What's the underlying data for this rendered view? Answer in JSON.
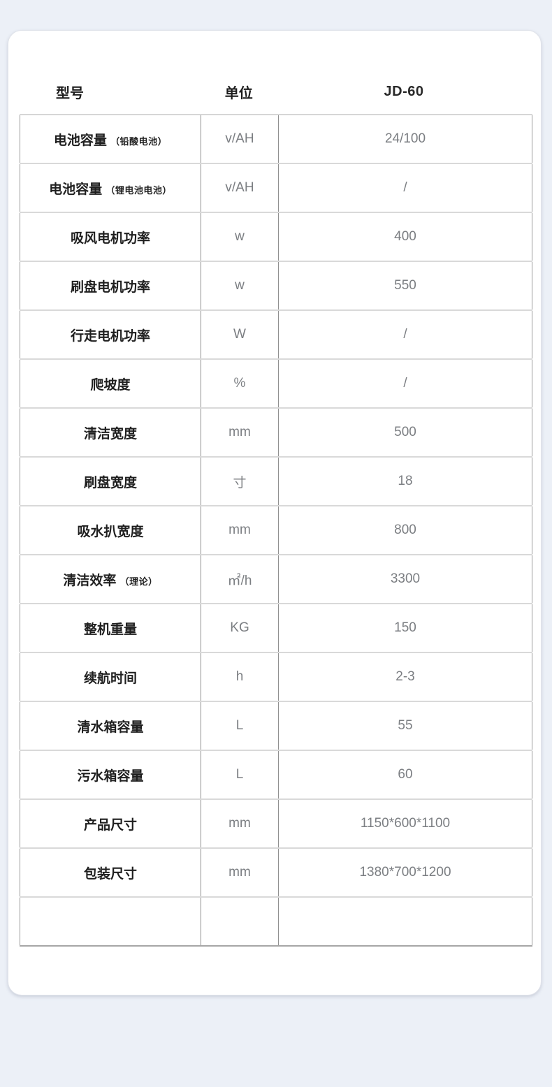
{
  "colors": {
    "page_background": "#ecf0f7",
    "card_background": "#ffffff",
    "label_text": "#1f1f1f",
    "muted_text": "#7b7e82",
    "vertical_border": "#8f8f8f",
    "horizontal_border": "#d9d9d9",
    "outer_bottom_border": "#a6a6a6"
  },
  "table": {
    "header": {
      "model_label": "型号",
      "unit_label": "单位",
      "model_value": "JD-60"
    },
    "rows": [
      {
        "label": "电池容量",
        "label_note": "（铅酸电池）",
        "unit": "v/AH",
        "value": "24/100"
      },
      {
        "label": "电池容量",
        "label_note": "（锂电池电池）",
        "unit": "v/AH",
        "value": "/"
      },
      {
        "label": "吸风电机功率",
        "label_note": "",
        "unit": "w",
        "value": "400"
      },
      {
        "label": "刷盘电机功率",
        "label_note": "",
        "unit": "w",
        "value": "550"
      },
      {
        "label": "行走电机功率",
        "label_note": "",
        "unit": "W",
        "value": "/"
      },
      {
        "label": "爬坡度",
        "label_note": "",
        "unit": "%",
        "value": "/"
      },
      {
        "label": "清洁宽度",
        "label_note": "",
        "unit": "mm",
        "value": "500"
      },
      {
        "label": "刷盘宽度",
        "label_note": "",
        "unit": "寸",
        "value": "18"
      },
      {
        "label": "吸水扒宽度",
        "label_note": "",
        "unit": "mm",
        "value": "800"
      },
      {
        "label": "清洁效率",
        "label_note": "（理论）",
        "unit": "㎡/h",
        "value": "3300"
      },
      {
        "label": "整机重量",
        "label_note": "",
        "unit": "KG",
        "value": "150"
      },
      {
        "label": "续航时间",
        "label_note": "",
        "unit": "h",
        "value": "2-3"
      },
      {
        "label": "清水箱容量",
        "label_note": "",
        "unit": "L",
        "value": "55"
      },
      {
        "label": "污水箱容量",
        "label_note": "",
        "unit": "L",
        "value": "60"
      },
      {
        "label": "产品尺寸",
        "label_note": "",
        "unit": "mm",
        "value": "1150*600*1100"
      },
      {
        "label": "包装尺寸",
        "label_note": "",
        "unit": "mm",
        "value": "1380*700*1200"
      },
      {
        "label": "",
        "label_note": "",
        "unit": "",
        "value": ""
      }
    ]
  }
}
